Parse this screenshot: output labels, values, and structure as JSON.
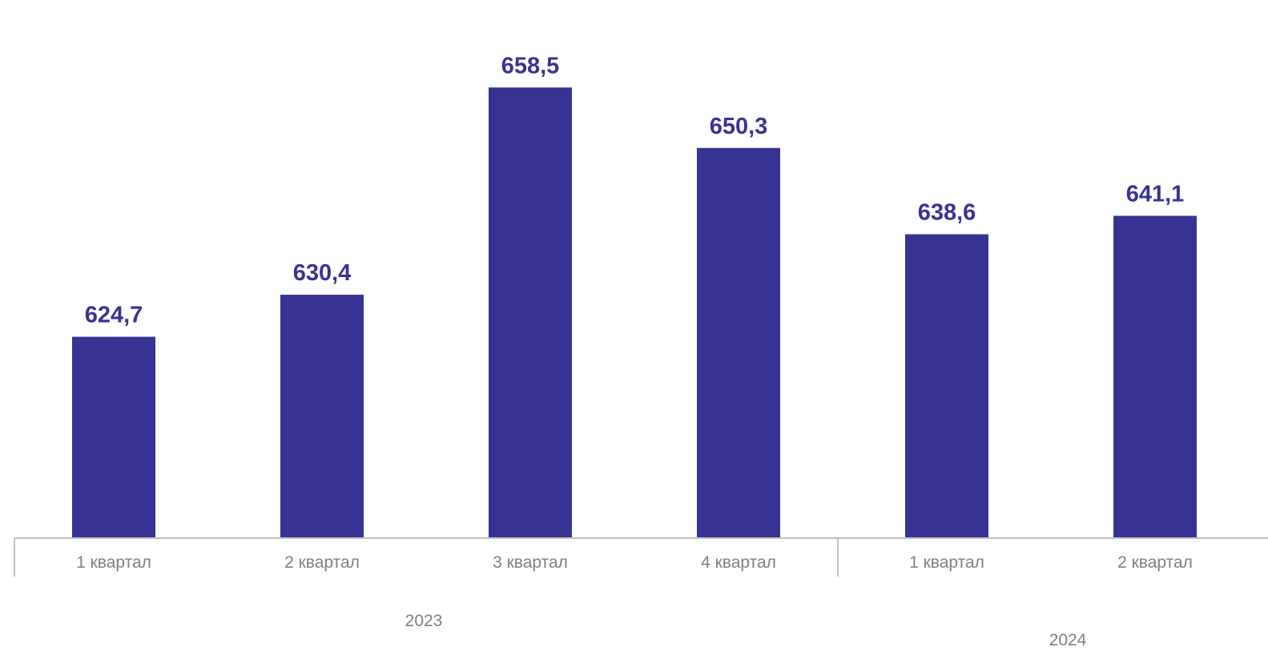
{
  "colors": {
    "bar": "#373394",
    "value_label": "#373394",
    "axis": "#bfbfbf",
    "tick_label": "#7f7f7f"
  },
  "chart_data": {
    "type": "bar",
    "title": "",
    "xlabel": "",
    "ylabel": "",
    "categories": [
      "1 квартал",
      "2 квартал",
      "3 квартал",
      "4 квартал",
      "1 квартал",
      "2 квартал"
    ],
    "groups": [
      {
        "label": "2023",
        "categories": [
          "1 квартал",
          "2 квартал",
          "3 квартал",
          "4 квартал"
        ]
      },
      {
        "label": "2024",
        "categories": [
          "1 квартал",
          "2 квартал"
        ]
      }
    ],
    "values": [
      624.7,
      630.4,
      658.5,
      650.3,
      638.6,
      641.1
    ],
    "data_labels": [
      "624,7",
      "630,4",
      "658,5",
      "650,3",
      "638,6",
      "641,1"
    ],
    "ylim": [
      597.4,
      664.5
    ],
    "grid": false,
    "legend": "none"
  }
}
